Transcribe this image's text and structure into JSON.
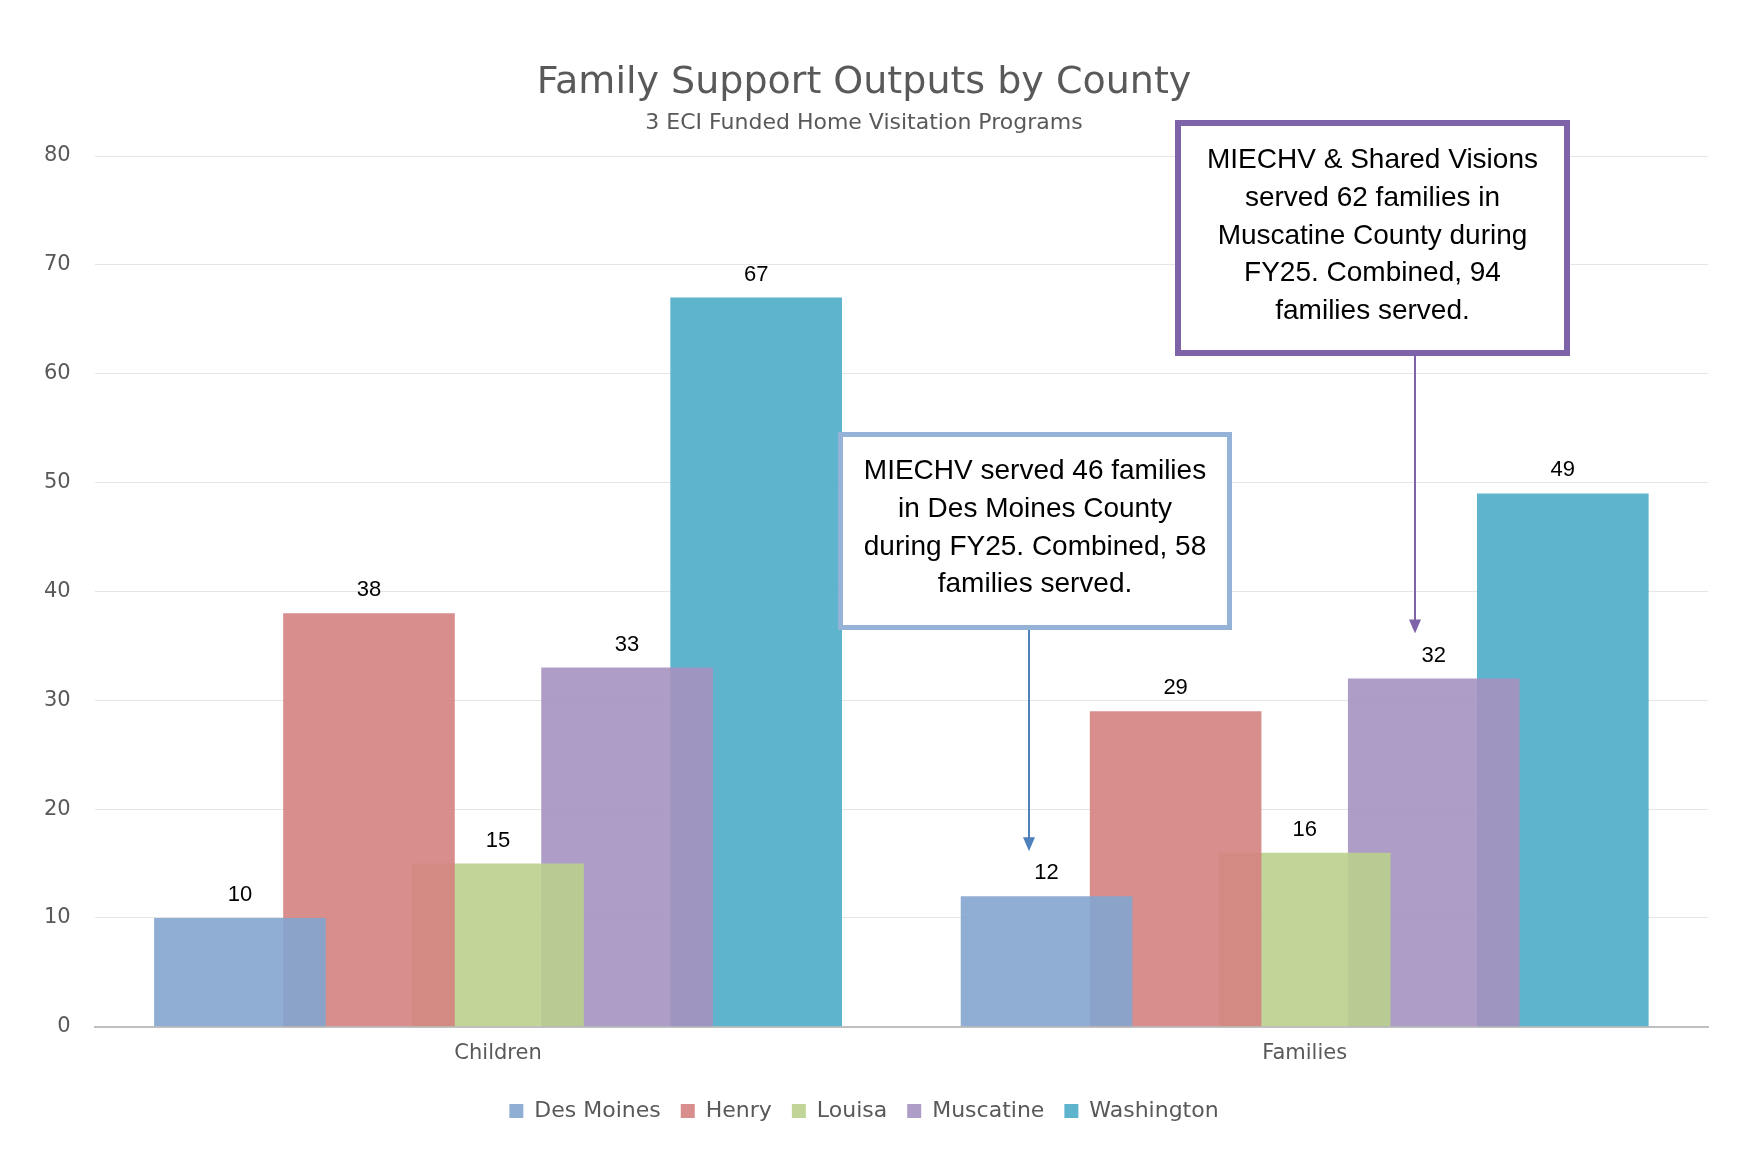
{
  "chart_data": {
    "type": "bar",
    "title": "Family Support Outputs by County",
    "subtitle": "3 ECI Funded Home Visitation Programs",
    "categories": [
      "Children",
      "Families"
    ],
    "series": [
      {
        "name": "Des Moines",
        "color": "#84a5cf",
        "values": [
          10,
          12
        ]
      },
      {
        "name": "Henry",
        "color": "#d48281",
        "values": [
          38,
          29
        ]
      },
      {
        "name": "Louisa",
        "color": "#b9d08c",
        "values": [
          15,
          16
        ]
      },
      {
        "name": "Muscatine",
        "color": "#a592c0",
        "values": [
          33,
          32
        ]
      },
      {
        "name": "Washington",
        "color": "#4bacc6",
        "values": [
          67,
          49
        ]
      }
    ],
    "ylim": [
      0,
      80
    ],
    "yticks": [
      0,
      10,
      20,
      30,
      40,
      50,
      60,
      70,
      80
    ],
    "grid": "y",
    "legend": "bottom",
    "data_labels": true,
    "annotations": [
      "MIECHV & Shared Visions served 62 families in Muscatine County during FY25. Combined, 94 families served.",
      "MIECHV served 46 families in Des Moines County during FY25. Combined, 58 families served."
    ]
  }
}
